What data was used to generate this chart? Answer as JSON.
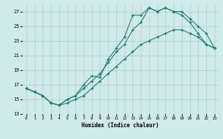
{
  "xlabel": "Humidex (Indice chaleur)",
  "bg_color": "#ceeaea",
  "line_color": "#1a7a6e",
  "grid_color": "#b8c8c8",
  "xlim": [
    -0.5,
    23.5
  ],
  "ylim": [
    13,
    28
  ],
  "xticks": [
    0,
    1,
    2,
    3,
    4,
    5,
    6,
    7,
    8,
    9,
    10,
    11,
    12,
    13,
    14,
    15,
    16,
    17,
    18,
    19,
    20,
    21,
    22,
    23
  ],
  "yticks": [
    13,
    15,
    17,
    19,
    21,
    23,
    25,
    27
  ],
  "line1_x": [
    0,
    1,
    2,
    3,
    4,
    5,
    6,
    7,
    8,
    9,
    10,
    11,
    12,
    13,
    14,
    15,
    16,
    17,
    18,
    19,
    20,
    21,
    22,
    23
  ],
  "line1_y": [
    16.5,
    16.0,
    15.5,
    14.5,
    14.2,
    15.0,
    15.5,
    17.0,
    18.2,
    18.0,
    20.5,
    22.0,
    23.5,
    26.5,
    26.5,
    27.5,
    27.0,
    27.5,
    27.0,
    27.0,
    26.0,
    25.0,
    24.0,
    22.0
  ],
  "line2_x": [
    0,
    1,
    2,
    3,
    4,
    5,
    6,
    7,
    8,
    9,
    10,
    11,
    12,
    13,
    14,
    15,
    16,
    17,
    18,
    19,
    20,
    21,
    22,
    23
  ],
  "line2_y": [
    16.5,
    16.0,
    15.5,
    14.5,
    14.2,
    15.0,
    15.5,
    16.5,
    17.5,
    18.5,
    20.0,
    21.5,
    22.5,
    24.5,
    25.5,
    27.5,
    27.0,
    27.5,
    27.0,
    26.5,
    25.5,
    24.0,
    22.5,
    22.0
  ],
  "line3_x": [
    0,
    1,
    2,
    3,
    4,
    5,
    6,
    7,
    8,
    9,
    10,
    11,
    12,
    13,
    14,
    15,
    16,
    17,
    18,
    19,
    20,
    21,
    22,
    23
  ],
  "line3_y": [
    16.5,
    16.0,
    15.5,
    14.5,
    14.2,
    14.5,
    15.0,
    15.5,
    16.5,
    17.5,
    18.5,
    19.5,
    20.5,
    21.5,
    22.5,
    23.0,
    23.5,
    24.0,
    24.5,
    24.5,
    24.0,
    23.5,
    22.5,
    22.0
  ]
}
